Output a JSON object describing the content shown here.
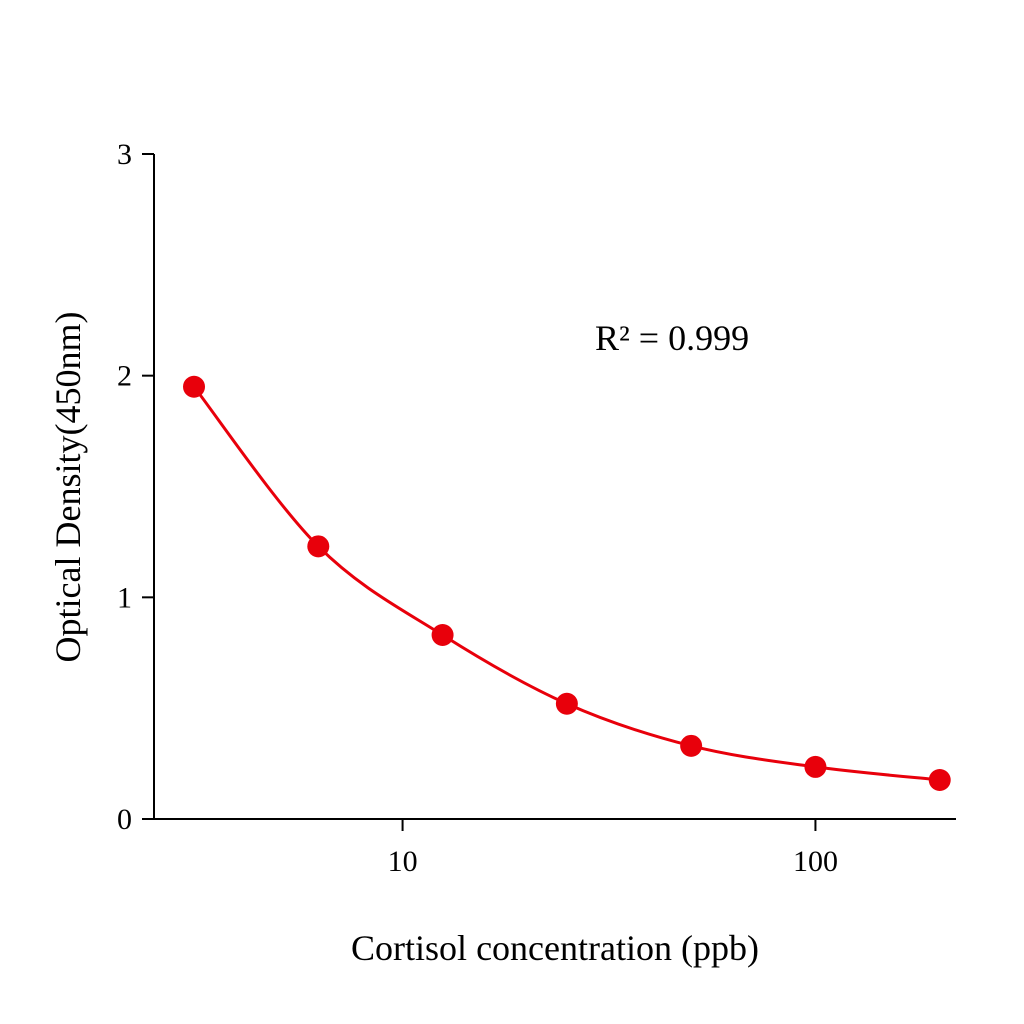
{
  "chart_data": {
    "type": "scatter",
    "xlabel": "Cortisol concentration (ppb)",
    "ylabel": "Optical Density(450nm)",
    "x_scale": "log",
    "xlim": [
      2.5,
      219
    ],
    "ylim": [
      0,
      3
    ],
    "x_ticks": [
      10,
      100
    ],
    "x_tick_labels": [
      "10",
      "100"
    ],
    "y_ticks": [
      0,
      1,
      2,
      3
    ],
    "y_tick_labels": [
      "0",
      "1",
      "2",
      "3"
    ],
    "grid": false,
    "annotation": "R² = 0.999",
    "color": "#e8000b",
    "fit_line": true,
    "x": [
      3.125,
      6.25,
      12.5,
      25,
      50,
      100,
      200
    ],
    "y": [
      1.95,
      1.23,
      0.83,
      0.52,
      0.33,
      0.235,
      0.176
    ]
  }
}
